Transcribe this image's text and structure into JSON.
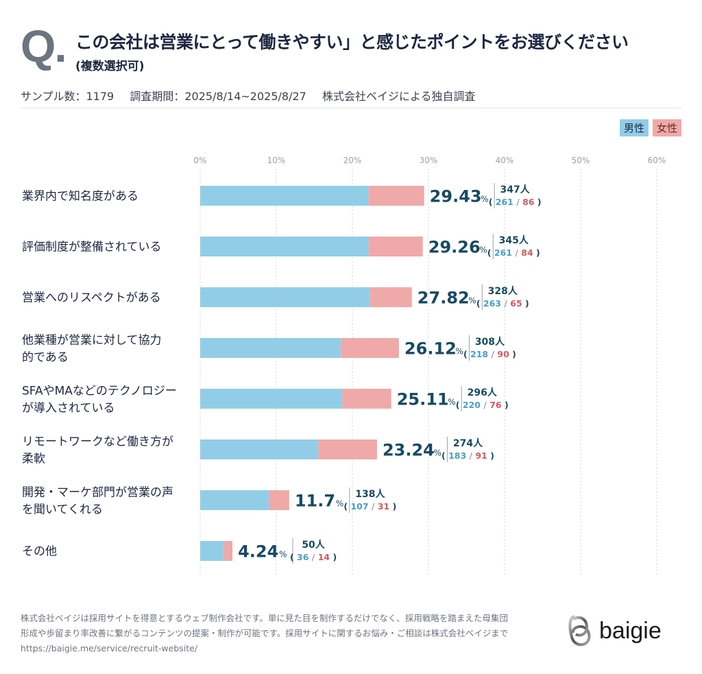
{
  "header": {
    "q_mark": "Q",
    "q_dot": ".",
    "title": "この会社は営業にとって働きやすい」と感じたポイントをお選びください",
    "subtitle": "(複数選択可)",
    "sample": "サンプル数：1179",
    "period": "調査期間：2025/8/14~2025/8/27",
    "source": "株式会社ベイジによる独自調査"
  },
  "legend": {
    "male": "男性",
    "female": "女性"
  },
  "colors": {
    "male": "#92cde8",
    "female": "#f0a9a9",
    "value": "#174a63",
    "male_text": "#4a9ec4",
    "female_text": "#d9585e",
    "grid": "#cfd3d8",
    "label": "#1c2740"
  },
  "chart_data": {
    "type": "bar",
    "orientation": "horizontal",
    "stacked": true,
    "title": "この会社は営業にとって働きやすい」と感じたポイントをお選びください",
    "xlabel": "",
    "ylabel": "",
    "xlim": [
      0,
      60
    ],
    "x_ticks": [
      "0%",
      "10%",
      "20%",
      "30%",
      "40%",
      "50%",
      "60%"
    ],
    "grid": true,
    "legend_position": "top-right",
    "categories": [
      [
        "業界内で知名度がある"
      ],
      [
        "評価制度が整備されている"
      ],
      [
        "営業へのリスペクトがある"
      ],
      [
        "他業種が営業に対して協力",
        "的である"
      ],
      [
        "SFAやMAなどのテクノロジー",
        "が導入されている"
      ],
      [
        "リモートワークなど働き方が",
        "柔軟"
      ],
      [
        "開発・マーケ部門が営業の声",
        "を聞いてくれる"
      ],
      [
        "その他"
      ]
    ],
    "percent": [
      29.43,
      29.26,
      27.82,
      26.12,
      25.11,
      23.24,
      11.7,
      4.24
    ],
    "percent_labels": [
      "29.43",
      "29.26",
      "27.82",
      "26.12",
      "25.11",
      "23.24",
      "11.7",
      "4.24"
    ],
    "totals": [
      347,
      345,
      328,
      308,
      296,
      274,
      138,
      50
    ],
    "series": [
      {
        "name": "男性",
        "values": [
          261,
          261,
          263,
          218,
          220,
          183,
          107,
          36
        ]
      },
      {
        "name": "女性",
        "values": [
          86,
          84,
          65,
          90,
          76,
          91,
          31,
          14
        ]
      }
    ],
    "unit_percent": "%",
    "unit_people": "人"
  },
  "footer": {
    "text_line1": "株式会社ベイジは採用サイトを得意とするウェブ制作会社です。単に見た目を制作するだけでなく、採用戦略を踏まえた母集団",
    "text_line2": "形成や歩留まり率改善に繋がるコンテンツの提案・制作が可能です。採用サイトに関するお悩み・ご相談は株式会社ベイジまで",
    "url": "https://baigie.me/service/recruit-website/",
    "logo_name": "baigie",
    "logo_icon": "baigie-logo-icon"
  }
}
